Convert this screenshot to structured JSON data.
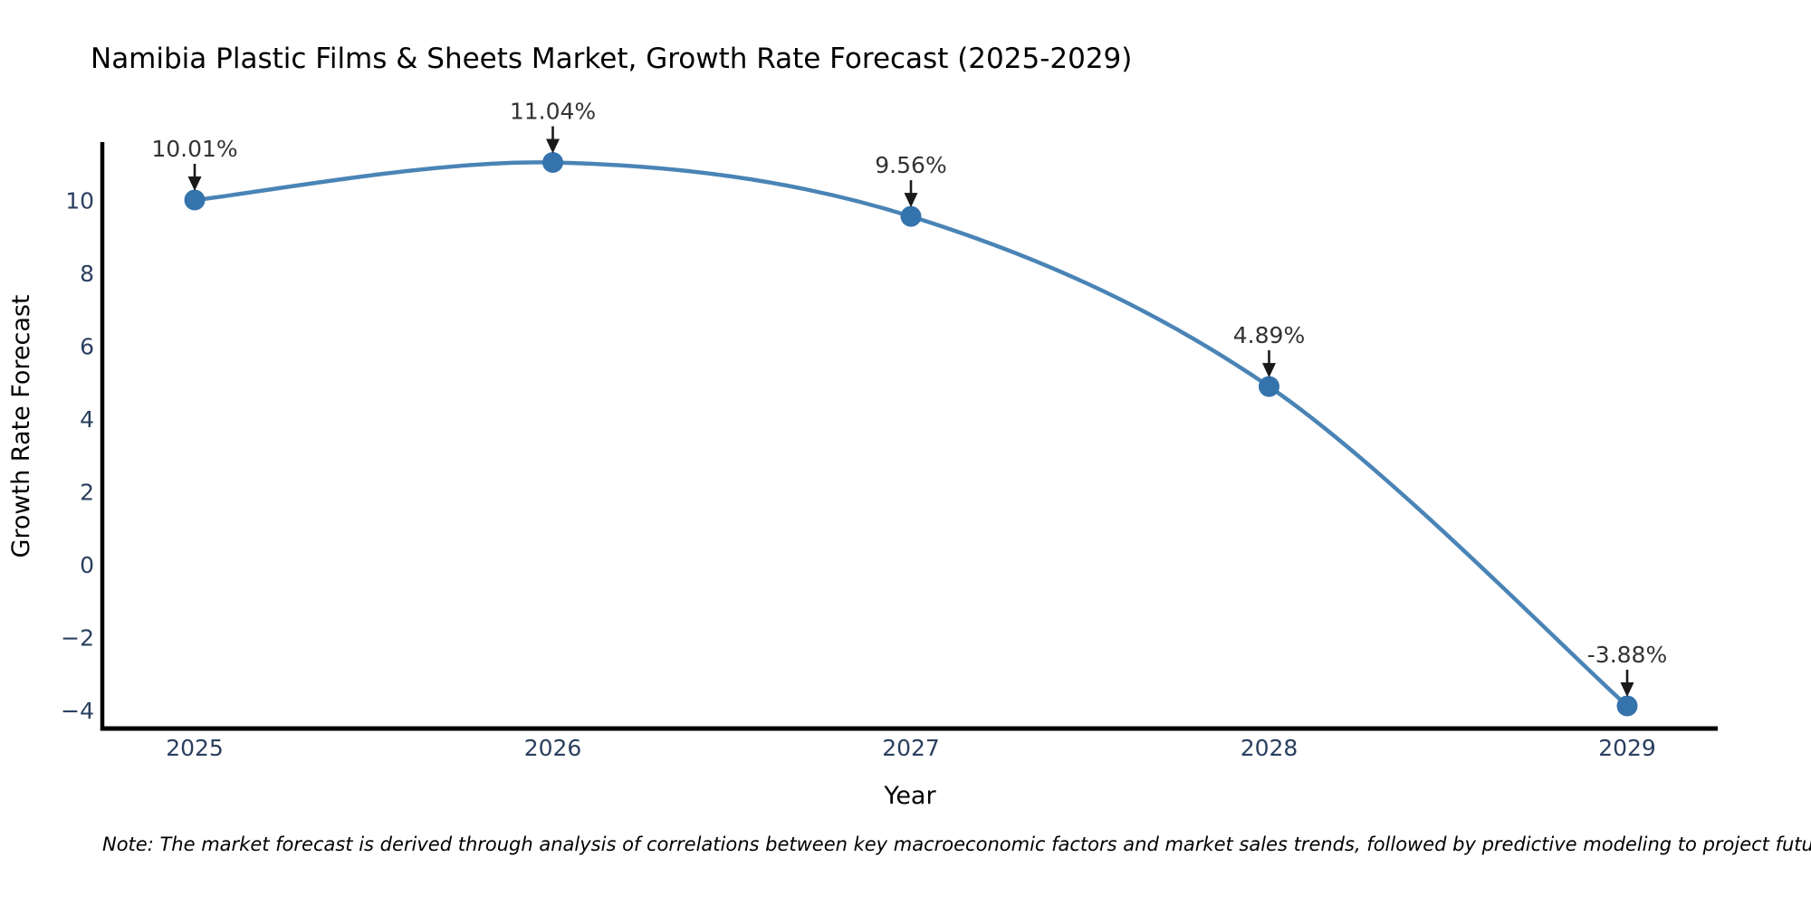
{
  "note": "Note: The market forecast is derived through analysis of correlations between key macroeconomic factors and market sales trends, followed by predictive modeling to project future sales",
  "chart_data": {
    "type": "line",
    "title": "Namibia Plastic Films & Sheets Market, Growth Rate Forecast (2025-2029)",
    "xlabel": "Year",
    "ylabel": "Growth Rate Forecast",
    "categories": [
      "2025",
      "2026",
      "2027",
      "2028",
      "2029"
    ],
    "values": [
      10.01,
      11.04,
      9.56,
      4.89,
      -3.88
    ],
    "point_labels": [
      "10.01%",
      "11.04%",
      "9.56%",
      "4.89%",
      "-3.88%"
    ],
    "series_name": "Growth Rate Forecast",
    "line_shape": "spline",
    "grid": false,
    "legend": "none",
    "ylim": [
      -4.5,
      11.6
    ],
    "yticks": [
      -4,
      -2,
      0,
      2,
      4,
      6,
      8,
      10
    ],
    "ytick_labels": [
      "−4",
      "−2",
      "0",
      "2",
      "4",
      "6",
      "8",
      "10"
    ],
    "colors": {
      "line": "#4a84b6",
      "marker": "#3573ad",
      "arrow": "#1a1a1a",
      "title": "#2a3f5f",
      "axis_line": "#000000",
      "tick_label": "#2a3f5f",
      "axis_title": "#2a3f5f",
      "annotation": "#333333",
      "note": "#2b2b2b",
      "background": "#ffffff"
    }
  }
}
